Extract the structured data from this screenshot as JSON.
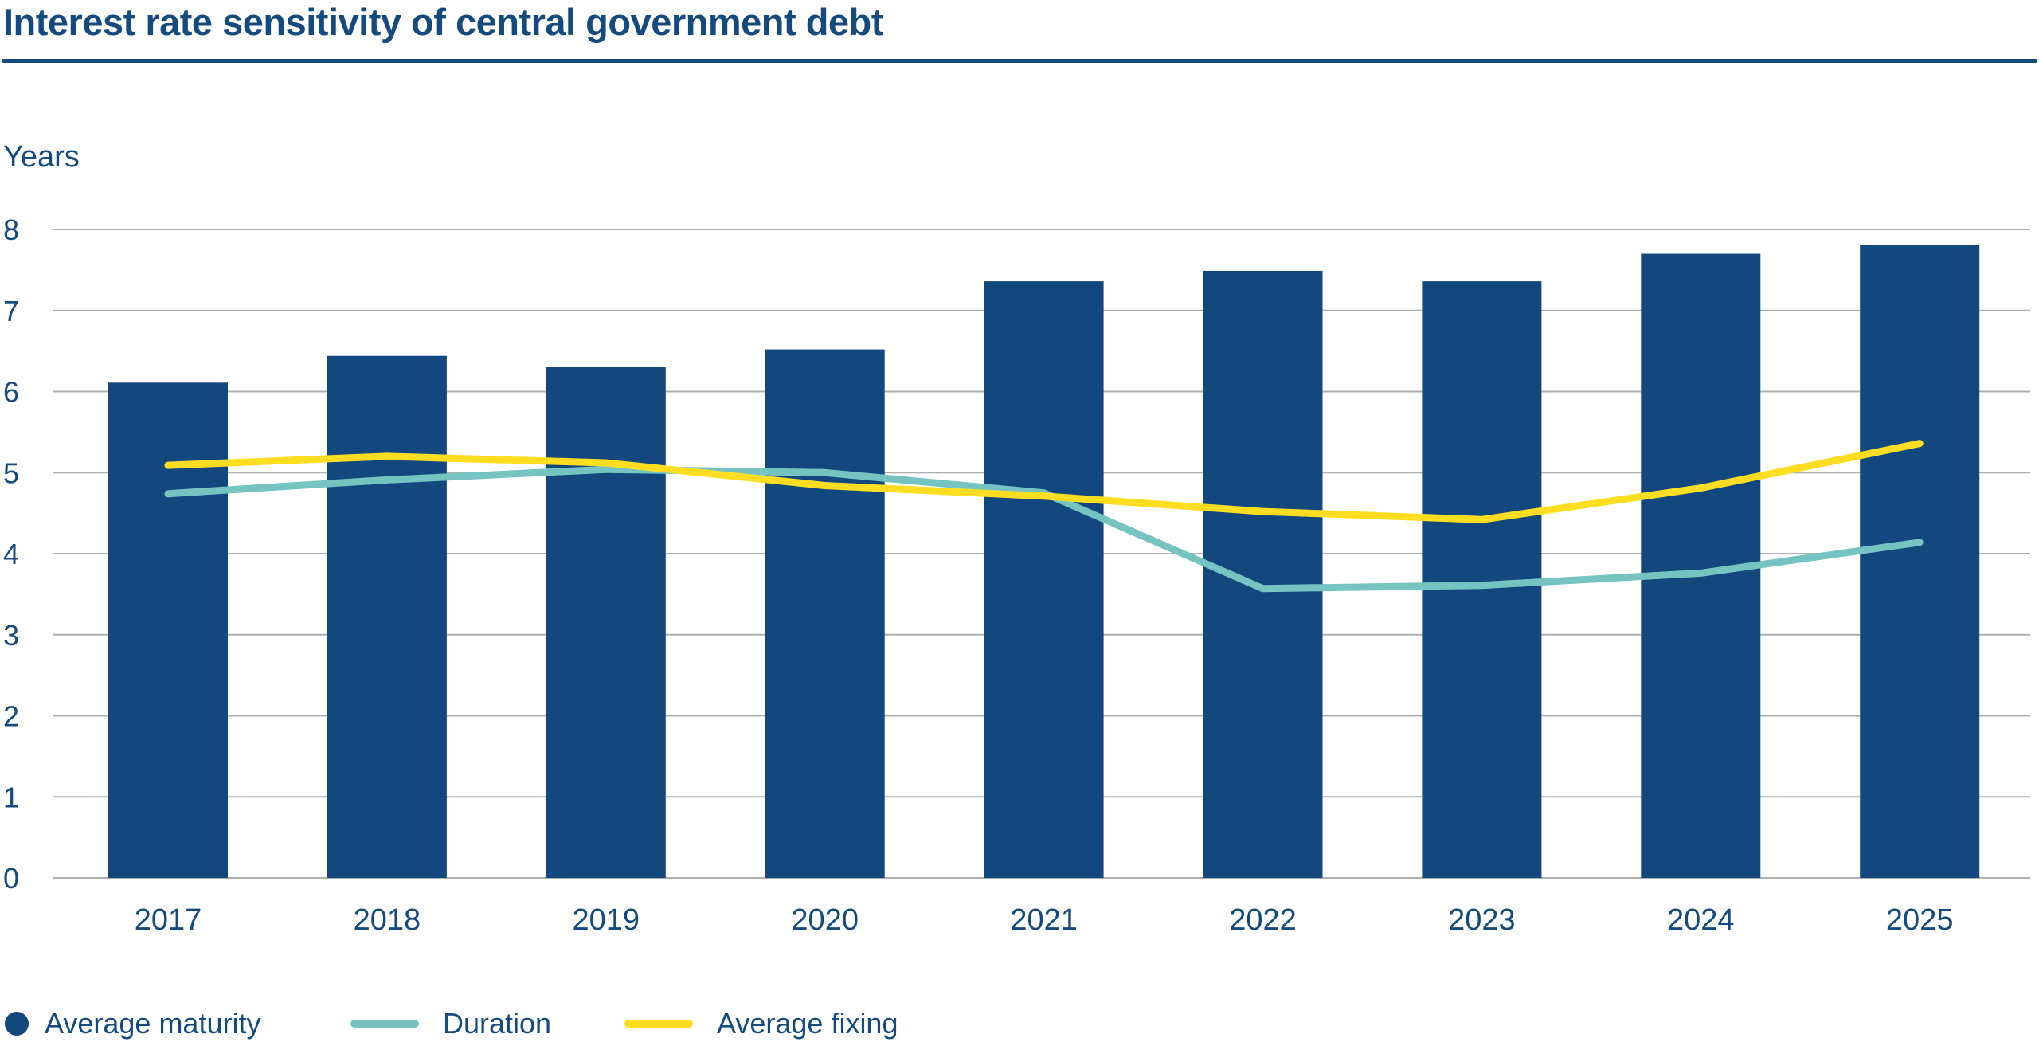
{
  "title": "Interest rate sensitivity of central government debt",
  "colors": {
    "text": "#144A7E",
    "rule": "#144A7E",
    "grid": "#AFAFAF",
    "bar": "#12487D",
    "duration": "#75C4C2",
    "fixing": "#FFDE21"
  },
  "chart_data": {
    "type": "bar",
    "title": "Interest rate sensitivity of central government debt",
    "xlabel": "",
    "ylabel": "Years",
    "ylim": [
      0,
      8
    ],
    "yticks": [
      "0",
      "1",
      "2",
      "3",
      "4",
      "5",
      "6",
      "7",
      "8"
    ],
    "grid": true,
    "legend_position": "bottom-left",
    "categories": [
      "2017",
      "2018",
      "2019",
      "2020",
      "2021",
      "2022",
      "2023",
      "2024",
      "2025"
    ],
    "series": [
      {
        "name": "Average maturity",
        "type": "bar",
        "legend_marker": "circle",
        "values": [
          6.11,
          6.44,
          6.3,
          6.52,
          7.36,
          7.49,
          7.36,
          7.7,
          7.81
        ]
      },
      {
        "name": "Duration",
        "type": "line",
        "legend_marker": "line",
        "values": [
          4.74,
          4.91,
          5.04,
          5.0,
          4.75,
          3.57,
          3.61,
          3.76,
          4.14
        ]
      },
      {
        "name": "Average fixing",
        "type": "line",
        "legend_marker": "line",
        "values": [
          5.09,
          5.2,
          5.12,
          4.84,
          4.71,
          4.52,
          4.42,
          4.81,
          5.36
        ]
      }
    ]
  }
}
